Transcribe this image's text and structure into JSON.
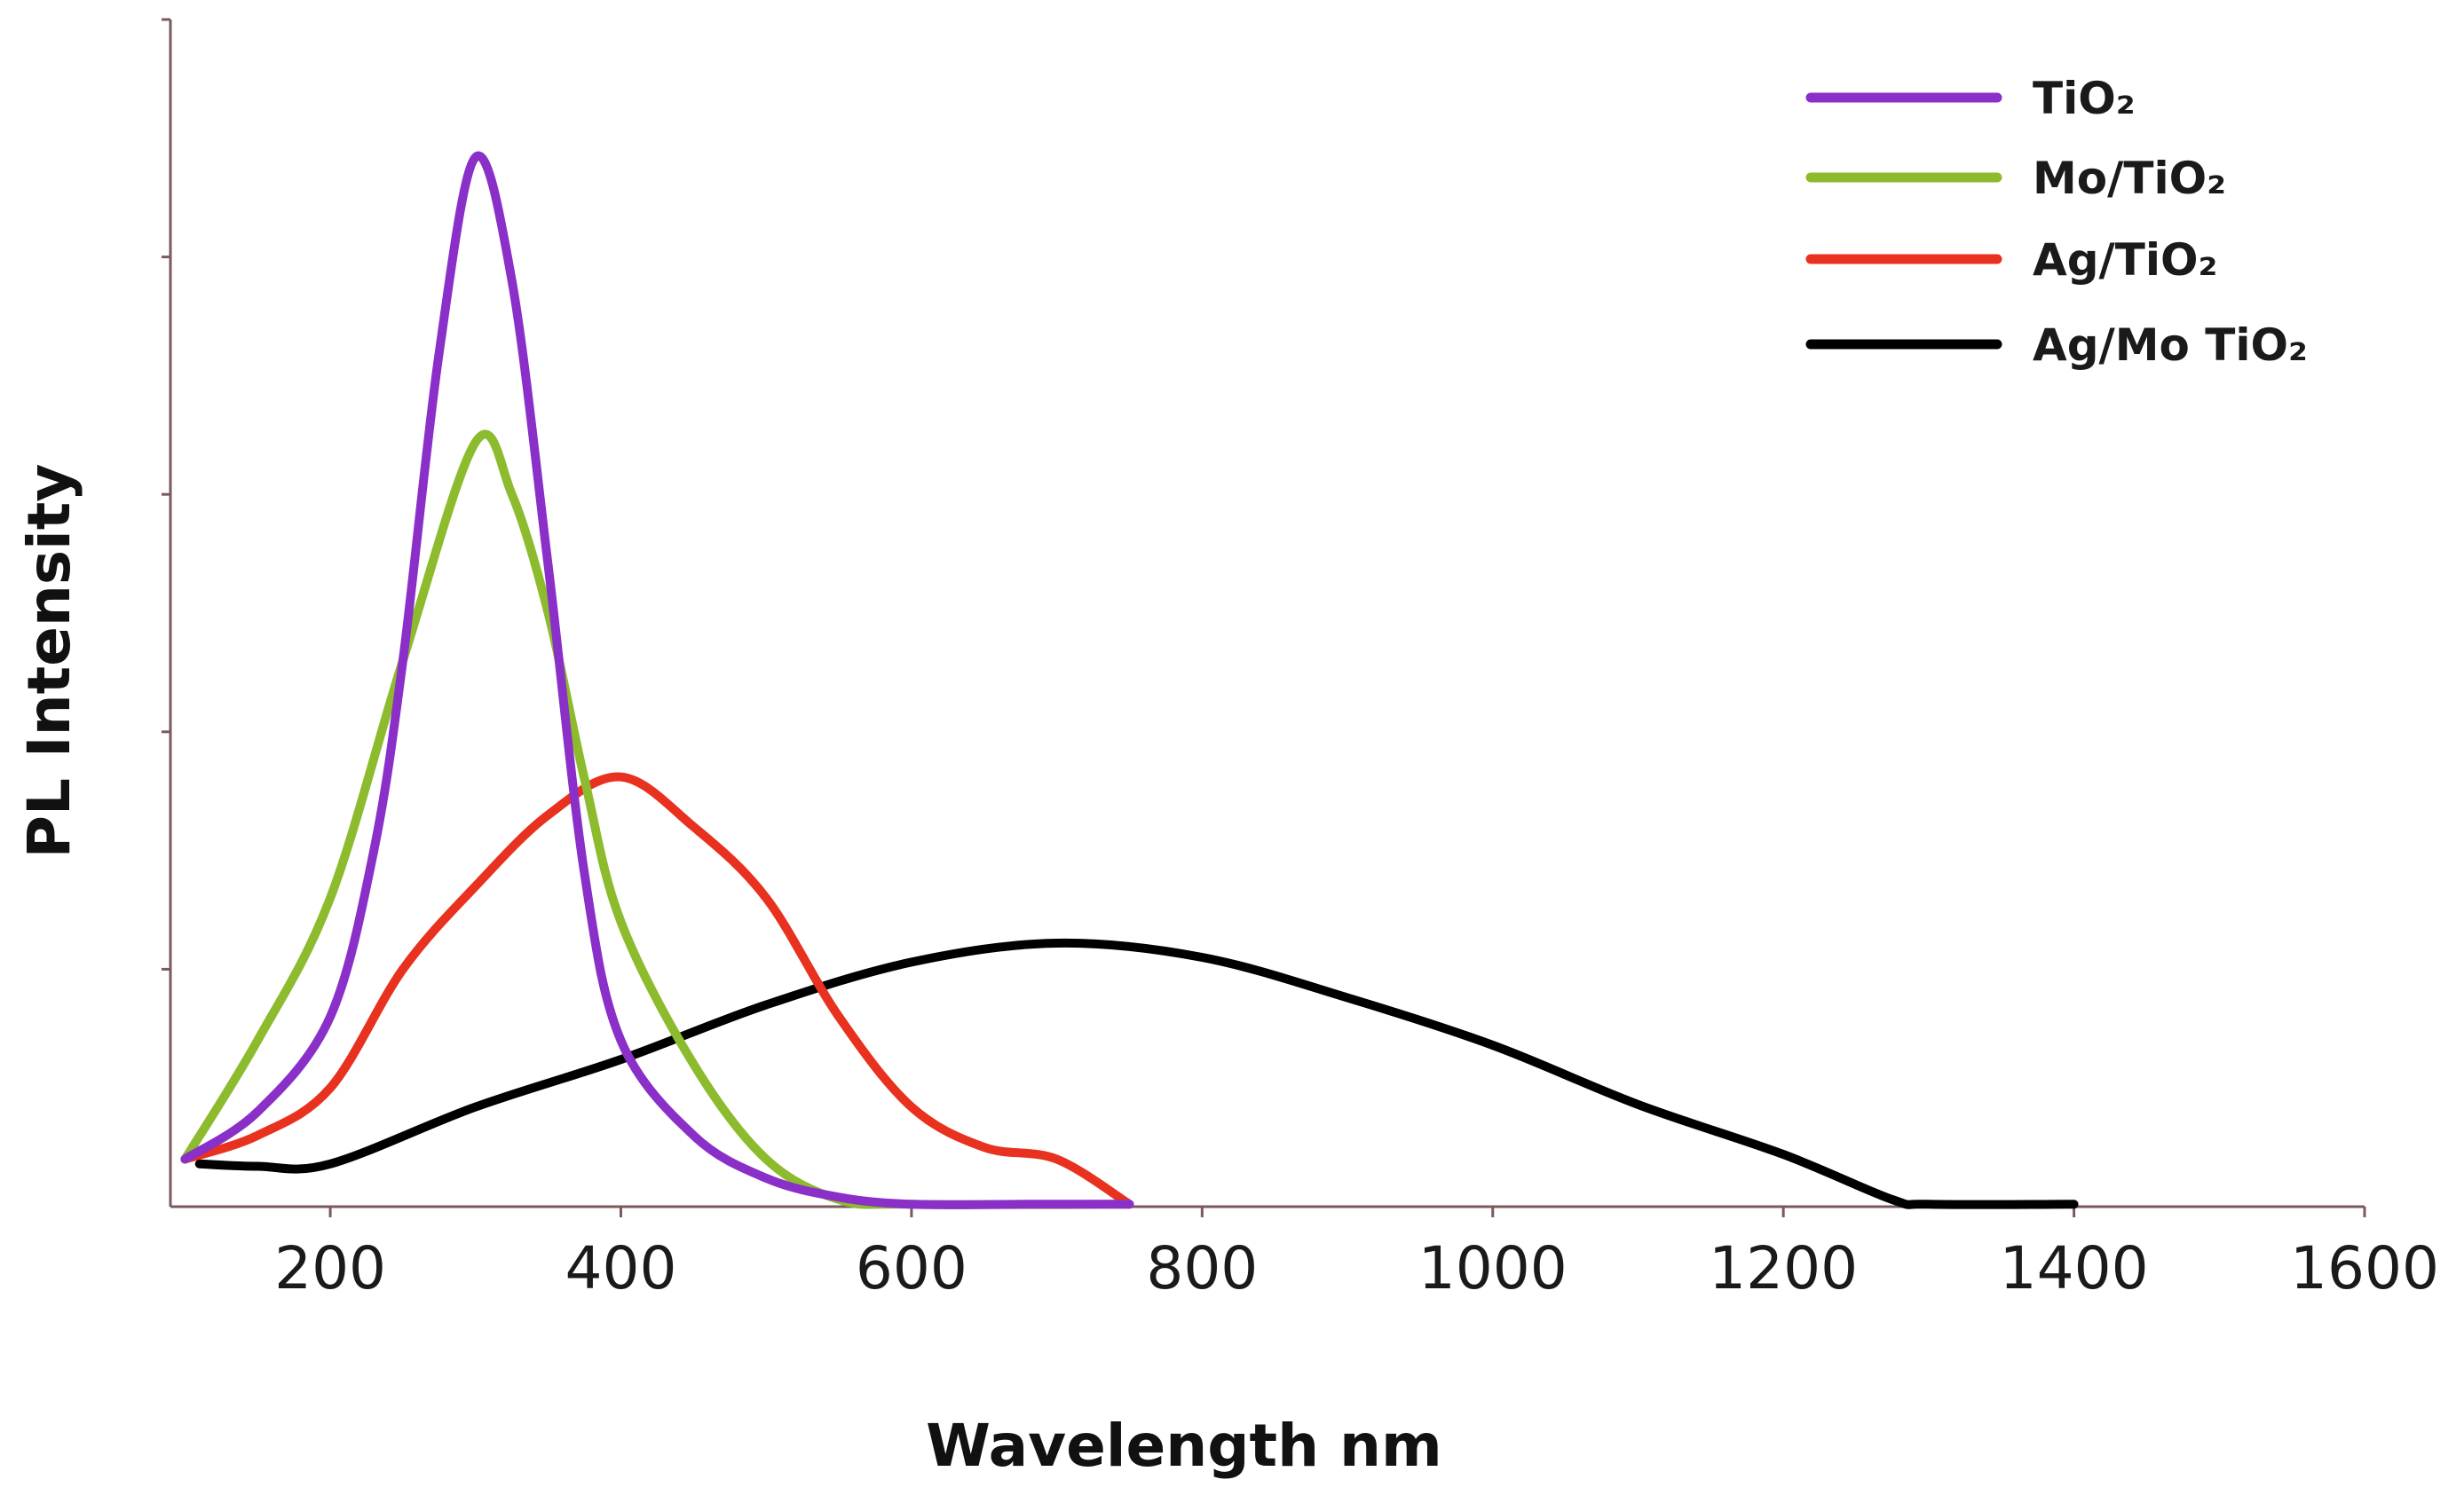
{
  "chart_data": {
    "type": "line",
    "title": "",
    "xlabel": "Wavelength nm",
    "ylabel": "PL Intensity",
    "xlim": [
      90,
      1600
    ],
    "ylim": [
      0,
      5
    ],
    "x_ticks": [
      200,
      400,
      600,
      800,
      1000,
      1200,
      1400,
      1600
    ],
    "y_tick_values": [
      1,
      2,
      3,
      4,
      5
    ],
    "y_tick_labels_shown": false,
    "grid": false,
    "legend_position": "top-right",
    "series": [
      {
        "name": "TiO₂",
        "color": "#8b2fc9",
        "points": [
          [
            100,
            0.2
          ],
          [
            150,
            0.4
          ],
          [
            200,
            0.8
          ],
          [
            230,
            1.5
          ],
          [
            250,
            2.3
          ],
          [
            275,
            3.6
          ],
          [
            300,
            4.42
          ],
          [
            325,
            3.9
          ],
          [
            350,
            2.7
          ],
          [
            375,
            1.4
          ],
          [
            400,
            0.7
          ],
          [
            450,
            0.3
          ],
          [
            500,
            0.12
          ],
          [
            550,
            0.04
          ],
          [
            600,
            0.01
          ],
          [
            680,
            0.01
          ],
          [
            750,
            0.01
          ]
        ]
      },
      {
        "name": "Mo/TiO₂",
        "color": "#8dbb2e",
        "points": [
          [
            100,
            0.2
          ],
          [
            150,
            0.7
          ],
          [
            200,
            1.3
          ],
          [
            250,
            2.3
          ],
          [
            300,
            3.22
          ],
          [
            325,
            3.0
          ],
          [
            350,
            2.5
          ],
          [
            375,
            1.8
          ],
          [
            400,
            1.2
          ],
          [
            450,
            0.6
          ],
          [
            500,
            0.2
          ],
          [
            550,
            0.03
          ],
          [
            600,
            0.01
          ],
          [
            750,
            0.01
          ]
        ]
      },
      {
        "name": "Ag/TiO₂",
        "color": "#e8311e",
        "points": [
          [
            100,
            0.2
          ],
          [
            150,
            0.3
          ],
          [
            200,
            0.5
          ],
          [
            250,
            1.0
          ],
          [
            300,
            1.35
          ],
          [
            350,
            1.65
          ],
          [
            400,
            1.81
          ],
          [
            450,
            1.6
          ],
          [
            500,
            1.3
          ],
          [
            550,
            0.8
          ],
          [
            600,
            0.42
          ],
          [
            650,
            0.25
          ],
          [
            700,
            0.2
          ],
          [
            750,
            0.01
          ]
        ]
      },
      {
        "name": "Ag/Mo TiO₂",
        "color": "#000000",
        "points": [
          [
            110,
            0.18
          ],
          [
            150,
            0.17
          ],
          [
            200,
            0.18
          ],
          [
            300,
            0.42
          ],
          [
            400,
            0.62
          ],
          [
            500,
            0.85
          ],
          [
            600,
            1.03
          ],
          [
            700,
            1.11
          ],
          [
            800,
            1.05
          ],
          [
            900,
            0.88
          ],
          [
            1000,
            0.68
          ],
          [
            1100,
            0.43
          ],
          [
            1200,
            0.22
          ],
          [
            1275,
            0.03
          ],
          [
            1300,
            0.01
          ],
          [
            1400,
            0.01
          ]
        ]
      }
    ]
  }
}
